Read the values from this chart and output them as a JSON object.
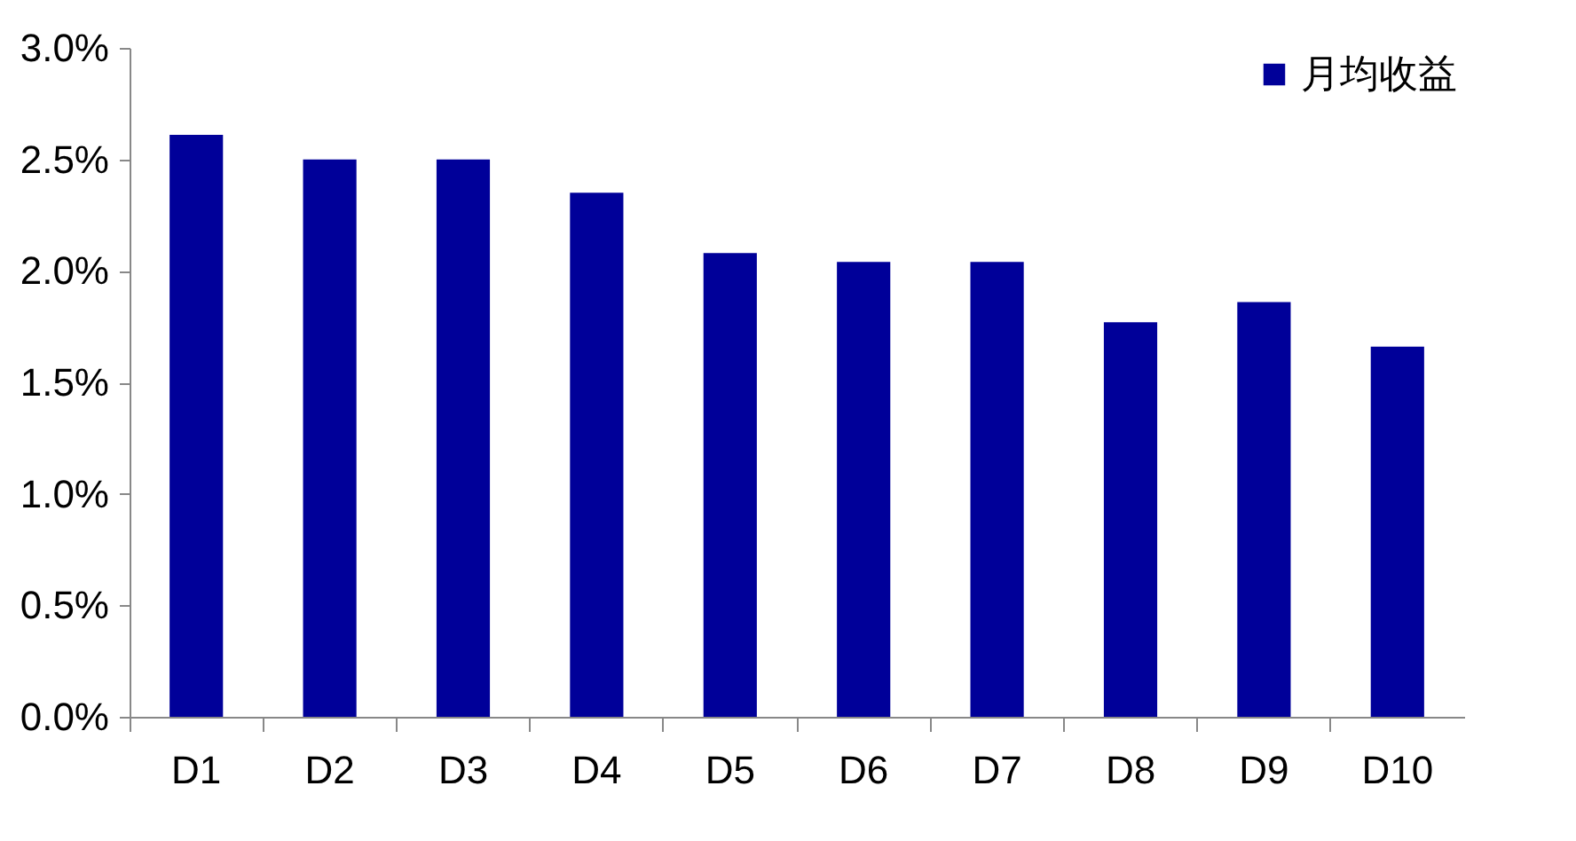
{
  "chart_data": {
    "type": "bar",
    "categories": [
      "D1",
      "D2",
      "D3",
      "D4",
      "D5",
      "D6",
      "D7",
      "D8",
      "D9",
      "D10"
    ],
    "series": [
      {
        "name": "月均收益",
        "color": "#000099",
        "values": [
          2.61,
          2.5,
          2.5,
          2.35,
          2.08,
          2.04,
          2.04,
          1.77,
          1.86,
          1.66
        ]
      }
    ],
    "ylim": [
      0,
      3
    ],
    "yticks": [
      {
        "value": 0,
        "label": "0.0%"
      },
      {
        "value": 0.5,
        "label": "0.5%"
      },
      {
        "value": 1,
        "label": "1.0%"
      },
      {
        "value": 1.5,
        "label": "1.5%"
      },
      {
        "value": 2,
        "label": "2.0%"
      },
      {
        "value": 2.5,
        "label": "2.5%"
      },
      {
        "value": 3,
        "label": "3.0%"
      }
    ],
    "grid": false,
    "legend": "top right"
  }
}
